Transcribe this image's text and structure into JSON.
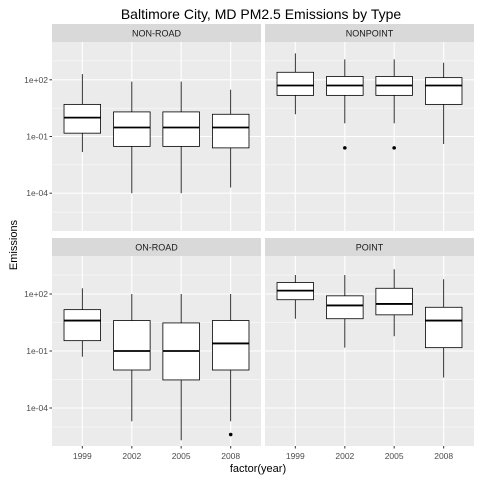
{
  "chart_data": {
    "type": "boxplot",
    "title": "Baltimore City, MD PM2.5 Emissions by Type",
    "xlabel": "factor(year)",
    "ylabel": "Emissions",
    "y_scale": "log10",
    "ylim": [
      1e-06,
      10000
    ],
    "y_ticks": [
      "1e-04",
      "1e-01",
      "1e+02"
    ],
    "categories": [
      "1999",
      "2002",
      "2005",
      "2008"
    ],
    "facet_layout": "2x2",
    "grid": true,
    "colors": {
      "panel_bg": "#ebebeb",
      "strip_bg": "#d9d9d9",
      "grid": "#ffffff",
      "box_fill": "#ffffff",
      "box_line": "#000000"
    },
    "panels": [
      {
        "name": "NON-ROAD",
        "boxes": [
          {
            "year": "1999",
            "lower_whisker": 0.015,
            "q1": 0.15,
            "median": 1.0,
            "q3": 5.0,
            "upper_whisker": 200,
            "outliers": []
          },
          {
            "year": "2002",
            "lower_whisker": 0.0001,
            "q1": 0.03,
            "median": 0.3,
            "q3": 2.0,
            "upper_whisker": 80,
            "outliers": []
          },
          {
            "year": "2005",
            "lower_whisker": 0.0001,
            "q1": 0.03,
            "median": 0.3,
            "q3": 2.0,
            "upper_whisker": 80,
            "outliers": []
          },
          {
            "year": "2008",
            "lower_whisker": 0.0002,
            "q1": 0.025,
            "median": 0.3,
            "q3": 1.5,
            "upper_whisker": 30,
            "outliers": []
          }
        ]
      },
      {
        "name": "NONPOINT",
        "boxes": [
          {
            "year": "1999",
            "lower_whisker": 1.5,
            "q1": 15,
            "median": 50,
            "q3": 250,
            "upper_whisker": 2500,
            "outliers": []
          },
          {
            "year": "2002",
            "lower_whisker": 0.5,
            "q1": 15,
            "median": 50,
            "q3": 150,
            "upper_whisker": 1200,
            "outliers": [
              0.025
            ]
          },
          {
            "year": "2005",
            "lower_whisker": 0.5,
            "q1": 15,
            "median": 50,
            "q3": 150,
            "upper_whisker": 1200,
            "outliers": [
              0.025
            ]
          },
          {
            "year": "2008",
            "lower_whisker": 0.04,
            "q1": 5,
            "median": 50,
            "q3": 130,
            "upper_whisker": 800,
            "outliers": []
          }
        ]
      },
      {
        "name": "ON-ROAD",
        "boxes": [
          {
            "year": "1999",
            "lower_whisker": 0.05,
            "q1": 0.35,
            "median": 4.0,
            "q3": 15,
            "upper_whisker": 200,
            "outliers": []
          },
          {
            "year": "2002",
            "lower_whisker": 2e-05,
            "q1": 0.01,
            "median": 0.1,
            "q3": 4.0,
            "upper_whisker": 100,
            "outliers": []
          },
          {
            "year": "2005",
            "lower_whisker": 2e-06,
            "q1": 0.003,
            "median": 0.1,
            "q3": 3.0,
            "upper_whisker": 100,
            "outliers": []
          },
          {
            "year": "2008",
            "lower_whisker": 2e-05,
            "q1": 0.01,
            "median": 0.25,
            "q3": 4.0,
            "upper_whisker": 100,
            "outliers": [
              4e-06
            ]
          }
        ]
      },
      {
        "name": "POINT",
        "boxes": [
          {
            "year": "1999",
            "lower_whisker": 5.0,
            "q1": 50,
            "median": 150,
            "q3": 400,
            "upper_whisker": 1000,
            "outliers": []
          },
          {
            "year": "2002",
            "lower_whisker": 0.15,
            "q1": 5,
            "median": 25,
            "q3": 80,
            "upper_whisker": 1000,
            "outliers": []
          },
          {
            "year": "2005",
            "lower_whisker": 0.6,
            "q1": 8,
            "median": 30,
            "q3": 200,
            "upper_whisker": 2000,
            "outliers": []
          },
          {
            "year": "2008",
            "lower_whisker": 0.004,
            "q1": 0.15,
            "median": 4.0,
            "q3": 20,
            "upper_whisker": 600,
            "outliers": []
          }
        ]
      }
    ]
  }
}
